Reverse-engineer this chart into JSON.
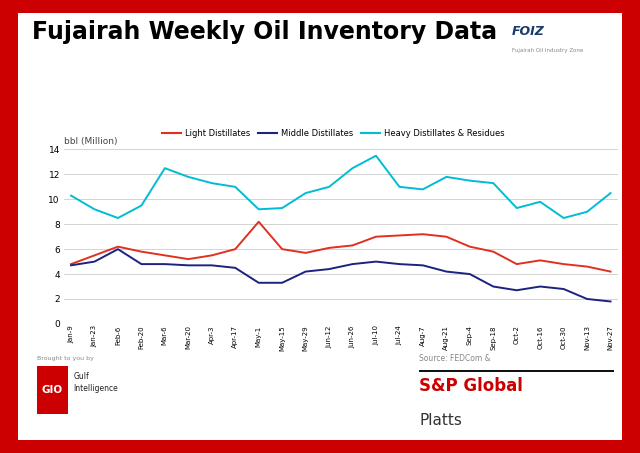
{
  "title": "Fujairah Weekly Oil Inventory Data",
  "ylabel": "bbl (Million)",
  "background_outer": "#cc0000",
  "background_inner": "#ffffff",
  "ylim": [
    0,
    14
  ],
  "yticks": [
    0,
    2,
    4,
    6,
    8,
    10,
    12,
    14
  ],
  "x_labels": [
    "Jan-9",
    "Jan-23",
    "Feb-6",
    "Feb-20",
    "Mar-6",
    "Mar-20",
    "Apr-3",
    "Apr-17",
    "May-1",
    "May-15",
    "May-29",
    "Jun-12",
    "Jun-26",
    "Jul-10",
    "Jul-24",
    "Aug-7",
    "Aug-21",
    "Sep-4",
    "Sep-18",
    "Oct-2",
    "Oct-16",
    "Oct-30",
    "Nov-13",
    "Nov-27"
  ],
  "light_distillates": [
    4.8,
    5.5,
    6.2,
    5.8,
    5.5,
    5.2,
    5.5,
    6.0,
    8.2,
    6.0,
    5.7,
    6.1,
    6.3,
    7.0,
    7.1,
    7.2,
    7.0,
    6.2,
    5.8,
    4.8,
    5.1,
    4.8,
    4.6,
    4.2
  ],
  "middle_distillates": [
    4.7,
    5.0,
    6.0,
    4.8,
    4.8,
    4.7,
    4.7,
    4.5,
    3.3,
    3.3,
    4.2,
    4.4,
    4.8,
    5.0,
    4.8,
    4.7,
    4.2,
    4.0,
    3.0,
    2.7,
    3.0,
    2.8,
    2.0,
    1.8
  ],
  "heavy_distillates": [
    10.3,
    9.2,
    8.5,
    9.5,
    12.5,
    11.8,
    11.3,
    11.0,
    9.2,
    9.3,
    10.5,
    11.0,
    12.5,
    13.5,
    11.0,
    10.8,
    11.8,
    11.5,
    11.3,
    9.3,
    9.8,
    8.5,
    9.0,
    10.5
  ],
  "color_light": "#e03020",
  "color_middle": "#1a237e",
  "color_heavy": "#00bcd4",
  "legend_labels": [
    "Light Distillates",
    "Middle Distillates",
    "Heavy Distillates & Residues"
  ]
}
